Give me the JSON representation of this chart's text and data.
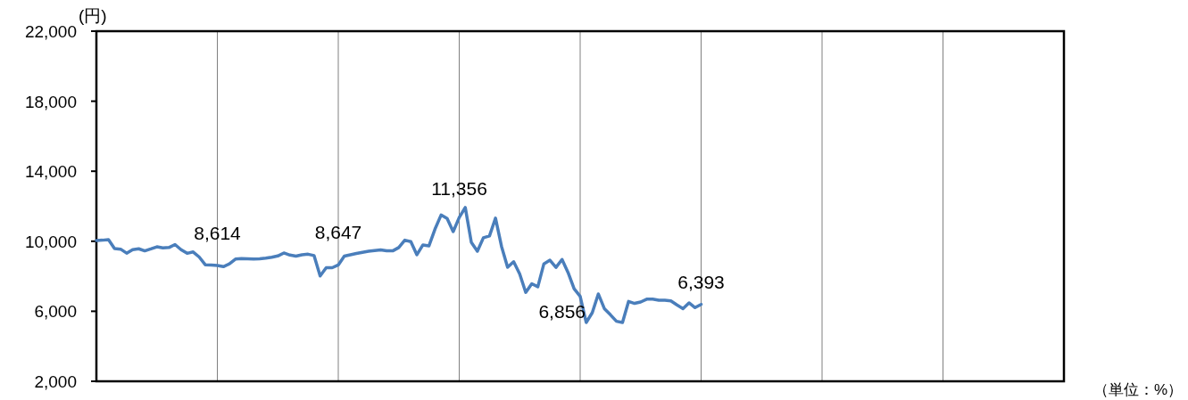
{
  "chart_data": {
    "type": "line",
    "ylabel": "(円)",
    "annotations": [
      "（単位：%）"
    ],
    "categories": [
      null,
      null,
      null,
      null,
      null,
      null,
      null,
      null,
      null,
      null,
      null,
      null,
      null,
      null,
      null,
      null,
      null,
      null,
      null,
      null,
      null,
      null,
      null,
      null,
      null,
      null,
      null,
      null,
      null,
      null,
      null,
      null,
      null,
      null,
      null,
      null,
      null,
      null,
      null,
      null,
      null,
      null,
      null,
      null,
      null,
      null,
      null,
      null,
      null,
      null,
      null,
      null,
      null,
      null,
      null,
      null,
      null,
      null,
      null,
      null,
      null,
      null,
      null,
      null,
      null,
      null,
      null,
      null,
      null,
      null,
      null,
      null,
      null,
      null,
      null,
      null,
      null,
      null,
      null,
      null,
      null,
      null,
      null,
      null,
      null,
      null,
      null,
      null,
      null,
      null,
      null,
      null,
      null,
      null,
      null,
      null,
      null,
      null,
      null,
      null,
      null,
      null,
      null,
      null,
      null,
      null,
      null,
      null,
      null,
      null,
      null,
      null,
      null,
      null,
      null,
      null,
      null,
      null,
      null,
      null,
      null,
      null,
      null,
      null,
      null,
      null,
      null,
      null,
      null,
      null,
      null,
      null,
      null,
      null,
      null,
      null,
      null,
      null,
      null,
      null,
      null,
      null,
      null,
      null,
      null,
      null,
      null,
      null,
      null,
      null,
      null,
      null,
      null,
      null,
      null,
      null,
      null,
      null,
      null,
      null,
      null
    ],
    "series": [
      {
        "color": "#4a7ebb",
        "values": [
          10040,
          10060,
          10090,
          9580,
          9550,
          9320,
          9520,
          9570,
          9450,
          9560,
          9680,
          9620,
          9640,
          9810,
          9520,
          9310,
          9390,
          9100,
          8660,
          8640,
          8614,
          8550,
          8710,
          8980,
          9010,
          9000,
          8980,
          9000,
          9040,
          9090,
          9160,
          9330,
          9210,
          9150,
          9230,
          9260,
          9180,
          8020,
          8490,
          8490,
          8647,
          9150,
          9230,
          9300,
          9370,
          9430,
          9470,
          9510,
          9460,
          9450,
          9640,
          10060,
          9980,
          9230,
          9790,
          9740,
          10700,
          11500,
          11300,
          10550,
          11356,
          11930,
          9940,
          9430,
          10200,
          10300,
          11320,
          9700,
          8510,
          8830,
          8130,
          7080,
          7570,
          7400,
          8710,
          8920,
          8510,
          8960,
          8210,
          7290,
          6856,
          5360,
          5920,
          6990,
          6150,
          5800,
          5430,
          5360,
          6560,
          6450,
          6530,
          6690,
          6690,
          6630,
          6630,
          6590,
          6360,
          6150,
          6480,
          6210,
          6393,
          null,
          null,
          null,
          null,
          null,
          null,
          null,
          null,
          null,
          null,
          null,
          null,
          null,
          null,
          null,
          null,
          null,
          null,
          null,
          null,
          null,
          null,
          null,
          null,
          null,
          null,
          null,
          null,
          null,
          null,
          null,
          null,
          null,
          null,
          null,
          null,
          null,
          null,
          null,
          null,
          null,
          null,
          null,
          null,
          null,
          null,
          null,
          null,
          null,
          null,
          null,
          null,
          null,
          null,
          null,
          null,
          null,
          null,
          null,
          null
        ],
        "value_labels": [
          null,
          null,
          null,
          null,
          null,
          null,
          null,
          null,
          null,
          null,
          null,
          null,
          null,
          null,
          null,
          null,
          null,
          null,
          null,
          null,
          "8,614",
          null,
          null,
          null,
          null,
          null,
          null,
          null,
          null,
          null,
          null,
          null,
          null,
          null,
          null,
          null,
          null,
          null,
          null,
          null,
          "8,647",
          null,
          null,
          null,
          null,
          null,
          null,
          null,
          null,
          null,
          null,
          null,
          null,
          null,
          null,
          null,
          null,
          null,
          null,
          null,
          "11,356",
          null,
          null,
          null,
          null,
          null,
          null,
          null,
          null,
          null,
          null,
          null,
          null,
          null,
          null,
          null,
          null,
          null,
          null,
          null,
          "6,856",
          null,
          null,
          null,
          null,
          null,
          null,
          null,
          null,
          null,
          null,
          null,
          null,
          null,
          null,
          null,
          null,
          null,
          null,
          null,
          "6,393",
          null,
          null,
          null,
          null,
          null,
          null,
          null,
          null,
          null,
          null,
          null,
          null,
          null,
          null,
          null,
          null,
          null,
          null,
          null,
          null,
          null,
          null,
          null,
          null,
          null,
          null,
          null,
          null,
          null,
          null,
          null,
          null,
          null,
          null,
          null,
          null,
          null,
          null,
          null,
          null,
          null,
          null,
          null,
          null,
          null,
          null,
          null,
          null,
          null,
          null,
          null,
          null,
          null,
          null,
          null,
          null,
          null,
          null,
          null,
          null
        ]
      }
    ],
    "ylim": [
      2000,
      22000
    ],
    "yticks": [
      {
        "value": 2000,
        "label": "2,000"
      },
      {
        "value": 6000,
        "label": "6,000"
      },
      {
        "value": 10000,
        "label": "10,000"
      },
      {
        "value": 14000,
        "label": "14,000"
      },
      {
        "value": 18000,
        "label": "18,000"
      },
      {
        "value": 22000,
        "label": "22,000"
      }
    ],
    "grid": "x",
    "tick_labels": "y"
  }
}
